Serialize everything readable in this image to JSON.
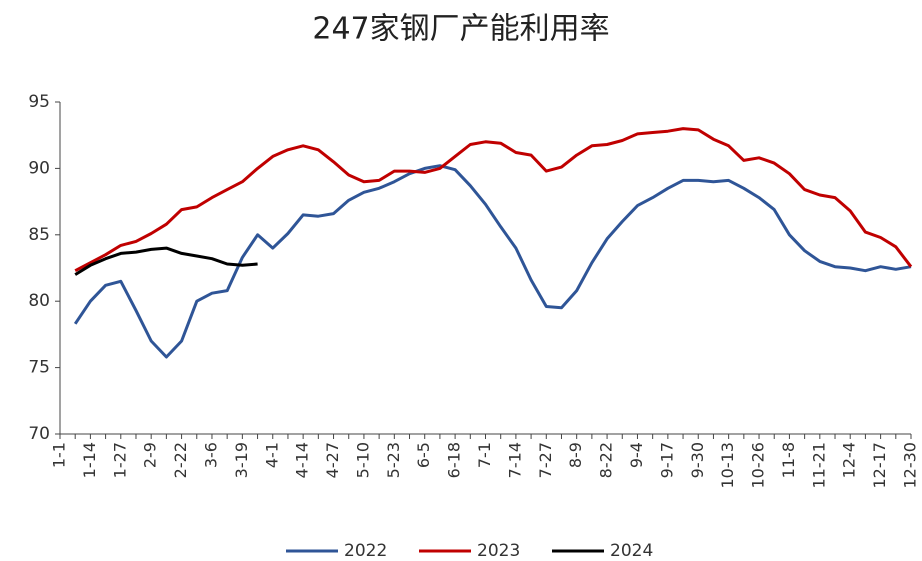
{
  "chart_data": {
    "type": "line",
    "title": "247家钢厂产能利用率",
    "categories": [
      "1-1",
      null,
      "1-14",
      null,
      "1-27",
      null,
      "2-9",
      null,
      "2-22",
      null,
      "3-6",
      null,
      "3-19",
      null,
      "4-1",
      null,
      "4-14",
      null,
      "4-27",
      null,
      "5-10",
      null,
      "5-23",
      null,
      "6-5",
      null,
      "6-18",
      null,
      "7-1",
      null,
      "7-14",
      null,
      "7-27",
      null,
      "8-9",
      null,
      "8-22",
      null,
      "9-4",
      null,
      "9-17",
      null,
      "9-30",
      null,
      "10-13",
      null,
      "10-26",
      null,
      "11-8",
      null,
      "11-21",
      null,
      "12-4",
      null,
      "12-17",
      null,
      "12-30"
    ],
    "series": [
      {
        "name": "2022",
        "color": "#2f5597",
        "values": [
          null,
          78.3,
          80.0,
          81.2,
          81.5,
          79.3,
          77.0,
          75.8,
          77.0,
          80.0,
          80.6,
          80.8,
          83.3,
          85.0,
          84.0,
          85.1,
          86.5,
          86.4,
          86.6,
          87.6,
          88.2,
          88.5,
          89.0,
          89.6,
          90.0,
          90.2,
          89.9,
          88.7,
          87.3,
          85.6,
          84.0,
          81.6,
          79.6,
          79.5,
          80.8,
          82.9,
          84.7,
          86.0,
          87.2,
          87.8,
          88.5,
          89.1,
          89.1,
          89.0,
          89.1,
          88.5,
          87.8,
          86.9,
          85.0,
          83.8,
          83.0,
          82.6,
          82.5,
          82.3,
          82.6,
          82.4,
          82.6
        ]
      },
      {
        "name": "2023",
        "color": "#c00000",
        "values": [
          null,
          82.3,
          82.9,
          83.5,
          84.2,
          84.5,
          85.1,
          85.8,
          86.9,
          87.1,
          87.8,
          88.4,
          89.0,
          90.0,
          90.9,
          91.4,
          91.7,
          91.4,
          90.5,
          89.5,
          89.0,
          89.1,
          89.8,
          89.8,
          89.7,
          90.0,
          90.9,
          91.8,
          92.0,
          91.9,
          91.2,
          91.0,
          89.8,
          90.1,
          91.0,
          91.7,
          91.8,
          92.1,
          92.6,
          92.7,
          92.8,
          93.0,
          92.9,
          92.2,
          91.7,
          90.6,
          90.8,
          90.4,
          89.6,
          88.4,
          88.0,
          87.8,
          86.8,
          85.2,
          84.8,
          84.1,
          82.6
        ]
      },
      {
        "name": "2024",
        "color": "#000000",
        "values": [
          null,
          82.0,
          82.7,
          83.2,
          83.6,
          83.7,
          83.9,
          84.0,
          83.6,
          83.4,
          83.2,
          82.8,
          82.7,
          82.8,
          null,
          null,
          null,
          null,
          null,
          null,
          null,
          null,
          null,
          null,
          null,
          null,
          null,
          null,
          null,
          null,
          null,
          null,
          null,
          null,
          null,
          null,
          null,
          null,
          null,
          null,
          null,
          null,
          null,
          null,
          null,
          null,
          null,
          null,
          null,
          null,
          null,
          null,
          null,
          null,
          null,
          null,
          null
        ]
      }
    ],
    "ylim": [
      70,
      95
    ],
    "yticks": [
      70,
      75,
      80,
      85,
      90,
      95
    ],
    "grid": false,
    "legend": "bottom"
  }
}
